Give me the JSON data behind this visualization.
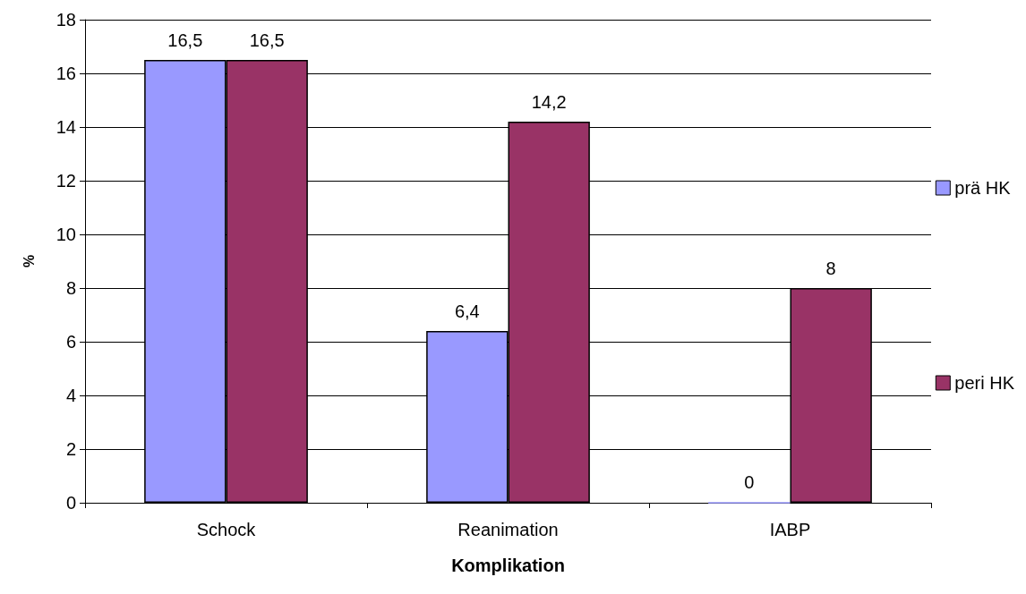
{
  "chart_data": {
    "type": "bar",
    "xlabel": "Komplikation",
    "ylabel": "%",
    "categories": [
      "Schock",
      "Reanimation",
      "IABP"
    ],
    "series": [
      {
        "name": "prä HK",
        "color": "#9999ff",
        "values": [
          16.5,
          6.4,
          0
        ],
        "value_labels": [
          "16,5",
          "6,4",
          "0"
        ]
      },
      {
        "name": "peri HK",
        "color": "#993366",
        "values": [
          16.5,
          14.2,
          8
        ],
        "value_labels": [
          "16,5",
          "14,2",
          "8"
        ]
      }
    ],
    "ylim": [
      0,
      18
    ],
    "yticks": [
      0,
      2,
      4,
      6,
      8,
      10,
      12,
      14,
      16,
      18
    ],
    "grid": "y",
    "legend": "right"
  }
}
